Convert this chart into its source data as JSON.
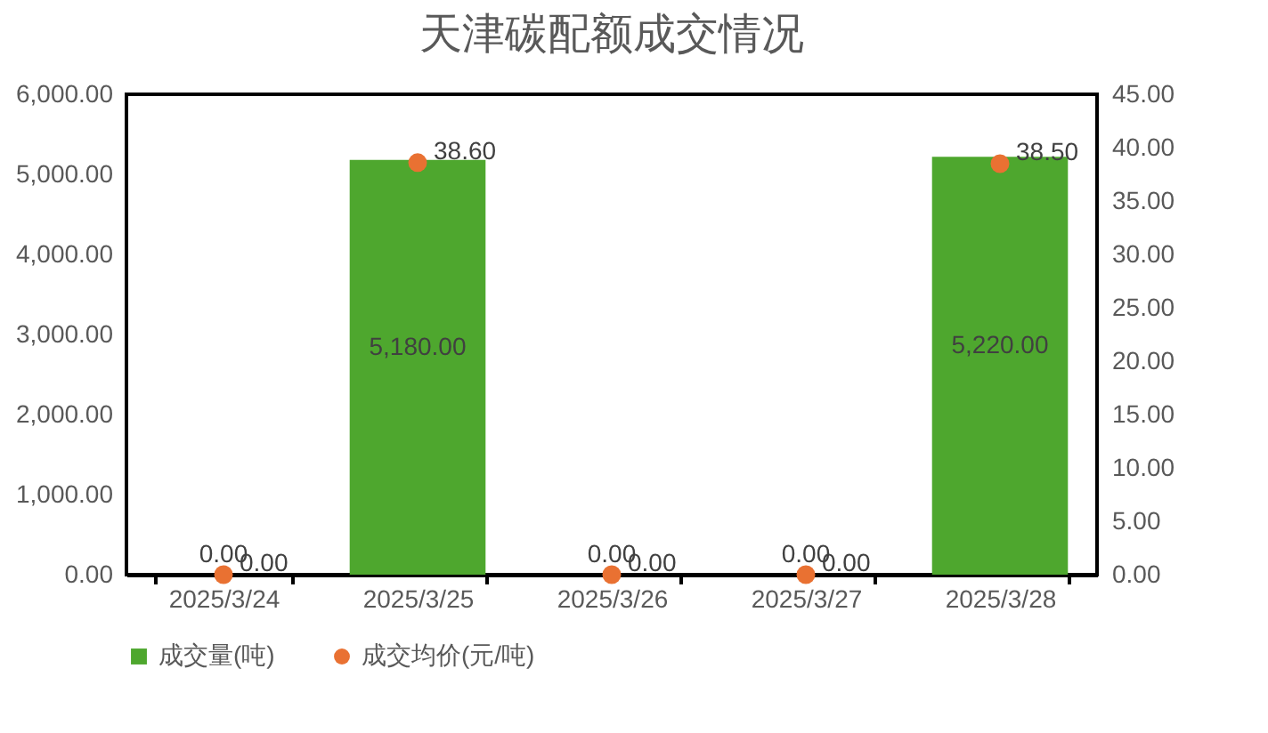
{
  "chart_data": {
    "type": "bar",
    "title": "天津碳配额成交情况",
    "categories": [
      "2025/3/24",
      "2025/3/25",
      "2025/3/26",
      "2025/3/27",
      "2025/3/28"
    ],
    "series": [
      {
        "name": "成交量(吨)",
        "color": "#4ea72e",
        "values": [
          0,
          5180,
          0,
          0,
          5220
        ],
        "value_labels": [
          "0.00",
          "5,180.00",
          "0.00",
          "0.00",
          "5,220.00"
        ]
      },
      {
        "name": "成交均价(元/吨)",
        "type": "scatter",
        "color": "#e97132",
        "axis": "y2",
        "values": [
          0,
          38.6,
          0,
          0,
          38.5
        ],
        "value_labels": [
          "0.00",
          "38.60",
          "0.00",
          "0.00",
          "38.50"
        ]
      }
    ],
    "ylim": [
      0,
      6000
    ],
    "yticks": [
      {
        "value": 0,
        "label": "0.00"
      },
      {
        "value": 1000,
        "label": "1,000.00"
      },
      {
        "value": 2000,
        "label": "2,000.00"
      },
      {
        "value": 3000,
        "label": "3,000.00"
      },
      {
        "value": 4000,
        "label": "4,000.00"
      },
      {
        "value": 5000,
        "label": "5,000.00"
      },
      {
        "value": 6000,
        "label": "6,000.00"
      }
    ],
    "y2lim": [
      0,
      45
    ],
    "y2ticks": [
      {
        "value": 0,
        "label": "0.00"
      },
      {
        "value": 5,
        "label": "5.00"
      },
      {
        "value": 10,
        "label": "10.00"
      },
      {
        "value": 15,
        "label": "15.00"
      },
      {
        "value": 20,
        "label": "20.00"
      },
      {
        "value": 25,
        "label": "25.00"
      },
      {
        "value": 30,
        "label": "30.00"
      },
      {
        "value": 35,
        "label": "35.00"
      },
      {
        "value": 40,
        "label": "40.00"
      },
      {
        "value": 45,
        "label": "45.00"
      }
    ],
    "legend": "bottom",
    "marker": "circle",
    "grid": false
  }
}
